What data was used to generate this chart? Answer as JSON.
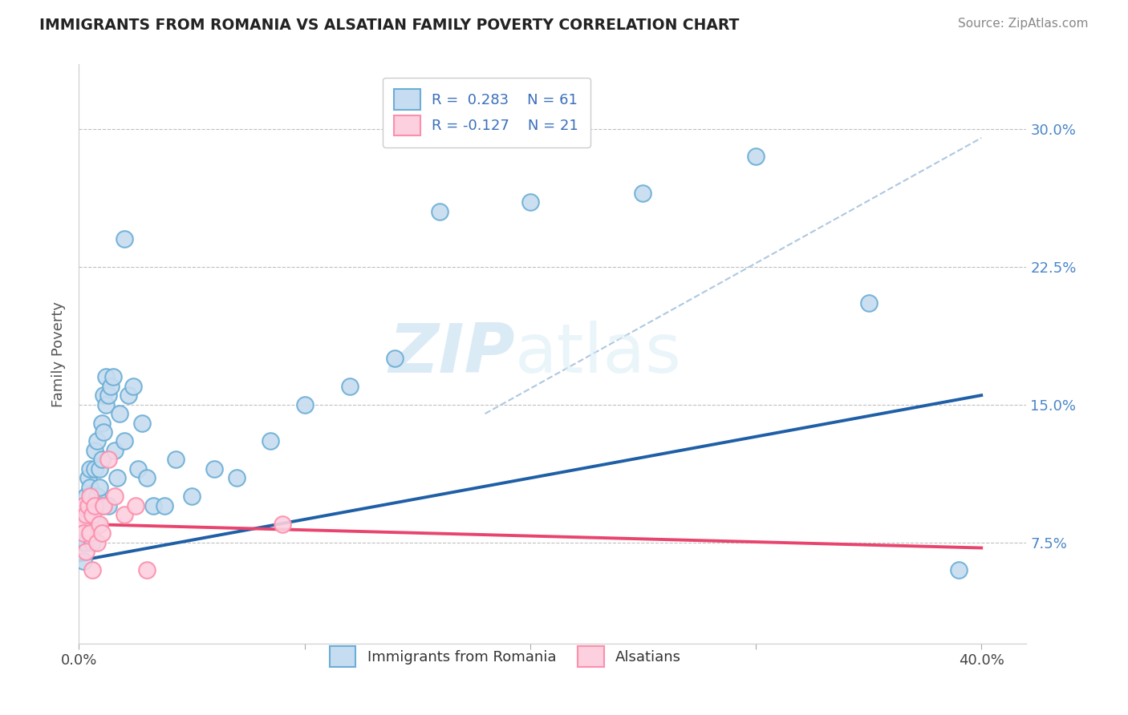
{
  "title": "IMMIGRANTS FROM ROMANIA VS ALSATIAN FAMILY POVERTY CORRELATION CHART",
  "source": "Source: ZipAtlas.com",
  "ylabel": "Family Poverty",
  "ytick_vals": [
    0.075,
    0.15,
    0.225,
    0.3
  ],
  "ytick_labels": [
    "7.5%",
    "15.0%",
    "22.5%",
    "30.0%"
  ],
  "xtick_vals": [
    0.0,
    0.1,
    0.2,
    0.3,
    0.4
  ],
  "xtick_labels": [
    "0.0%",
    "",
    "",
    "",
    "40.0%"
  ],
  "xlim": [
    0.0,
    0.42
  ],
  "ylim": [
    0.02,
    0.335
  ],
  "blue_edge": "#6baed6",
  "pink_edge": "#fc8fac",
  "blue_fill": "#c6dcf0",
  "pink_fill": "#fcd0df",
  "blue_line_color": "#1f5fa6",
  "pink_line_color": "#e8456e",
  "gray_dash_color": "#aec8e0",
  "watermark_color": "#d5e9f5",
  "blue_scatter_x": [
    0.001,
    0.002,
    0.002,
    0.002,
    0.003,
    0.003,
    0.003,
    0.004,
    0.004,
    0.004,
    0.005,
    0.005,
    0.005,
    0.006,
    0.006,
    0.006,
    0.007,
    0.007,
    0.007,
    0.008,
    0.008,
    0.008,
    0.009,
    0.009,
    0.01,
    0.01,
    0.01,
    0.011,
    0.011,
    0.012,
    0.012,
    0.013,
    0.013,
    0.014,
    0.015,
    0.016,
    0.017,
    0.018,
    0.02,
    0.022,
    0.024,
    0.026,
    0.028,
    0.03,
    0.033,
    0.038,
    0.043,
    0.05,
    0.06,
    0.07,
    0.085,
    0.1,
    0.12,
    0.14,
    0.16,
    0.2,
    0.25,
    0.3,
    0.35,
    0.39,
    0.02
  ],
  "blue_scatter_y": [
    0.085,
    0.075,
    0.095,
    0.065,
    0.1,
    0.085,
    0.075,
    0.11,
    0.09,
    0.08,
    0.105,
    0.115,
    0.095,
    0.1,
    0.08,
    0.075,
    0.115,
    0.125,
    0.095,
    0.1,
    0.085,
    0.13,
    0.105,
    0.115,
    0.12,
    0.095,
    0.14,
    0.155,
    0.135,
    0.15,
    0.165,
    0.155,
    0.095,
    0.16,
    0.165,
    0.125,
    0.11,
    0.145,
    0.13,
    0.155,
    0.16,
    0.115,
    0.14,
    0.11,
    0.095,
    0.095,
    0.12,
    0.1,
    0.115,
    0.11,
    0.13,
    0.15,
    0.16,
    0.175,
    0.255,
    0.26,
    0.265,
    0.285,
    0.205,
    0.06,
    0.24
  ],
  "pink_scatter_x": [
    0.001,
    0.002,
    0.002,
    0.003,
    0.003,
    0.004,
    0.005,
    0.005,
    0.006,
    0.006,
    0.007,
    0.008,
    0.009,
    0.01,
    0.011,
    0.013,
    0.016,
    0.02,
    0.025,
    0.09,
    0.03
  ],
  "pink_scatter_y": [
    0.085,
    0.08,
    0.095,
    0.07,
    0.09,
    0.095,
    0.08,
    0.1,
    0.09,
    0.06,
    0.095,
    0.075,
    0.085,
    0.08,
    0.095,
    0.12,
    0.1,
    0.09,
    0.095,
    0.085,
    0.06
  ],
  "blue_line_x0": 0.0,
  "blue_line_y0": 0.065,
  "blue_line_x1": 0.4,
  "blue_line_y1": 0.155,
  "pink_line_x0": 0.0,
  "pink_line_y0": 0.085,
  "pink_line_x1": 0.4,
  "pink_line_y1": 0.072,
  "gray_line_x0": 0.18,
  "gray_line_y0": 0.145,
  "gray_line_x1": 0.4,
  "gray_line_y1": 0.295
}
